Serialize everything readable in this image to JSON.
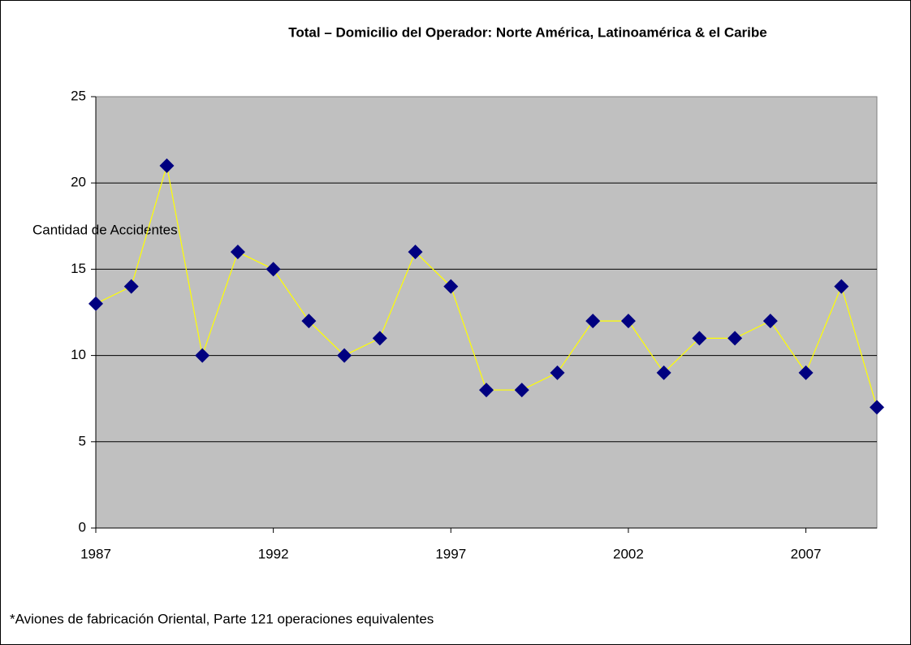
{
  "chart_data": {
    "type": "line",
    "title": "Total – Domicilio del Operador:  Norte América, Latinoamérica & el Caribe",
    "y_label": "Cantidad de Accidentes",
    "footnote": "*Aviones de fabricación Oriental, Parte 121 operaciones equivalentes",
    "x": [
      1987,
      1988,
      1989,
      1990,
      1991,
      1992,
      1993,
      1994,
      1995,
      1996,
      1997,
      1998,
      1999,
      2000,
      2001,
      2002,
      2003,
      2004,
      2005,
      2006,
      2007,
      2008,
      2009
    ],
    "values": [
      13,
      14,
      21,
      10,
      16,
      15,
      12,
      10,
      11,
      16,
      14,
      8,
      8,
      9,
      12,
      12,
      9,
      11,
      11,
      12,
      9,
      14,
      7
    ],
    "color": "#ffff00",
    "marker_color": "#000080",
    "xlim": [
      1987,
      2009
    ],
    "xticks": [
      1987,
      1992,
      1997,
      2002,
      2007
    ],
    "ylim": [
      0,
      25
    ],
    "yticks": [
      0,
      5,
      10,
      15,
      20,
      25
    ],
    "grid": true
  }
}
